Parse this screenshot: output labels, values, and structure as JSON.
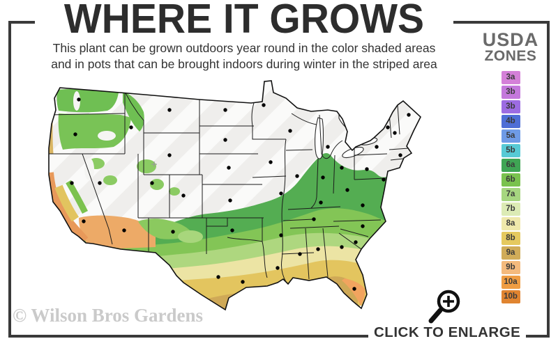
{
  "header": {
    "title": "WHERE IT GROWS",
    "subtitle_line1": "This plant can be grown outdoors year round in the color shaded areas",
    "subtitle_line2": "and in pots that can be brought indoors during winter in the striped area"
  },
  "legend": {
    "title_line1": "USDA",
    "title_line2": "ZONES",
    "zones": [
      {
        "label": "3a",
        "color": "#d480d8"
      },
      {
        "label": "3b",
        "color": "#c478dc"
      },
      {
        "label": "3b",
        "color": "#9c6ce2"
      },
      {
        "label": "4b",
        "color": "#4e6ed6"
      },
      {
        "label": "5a",
        "color": "#6f9be6"
      },
      {
        "label": "5b",
        "color": "#57cad5"
      },
      {
        "label": "6a",
        "color": "#3fa554"
      },
      {
        "label": "6b",
        "color": "#7ac24e"
      },
      {
        "label": "7a",
        "color": "#a6d680"
      },
      {
        "label": "7b",
        "color": "#dcebb5"
      },
      {
        "label": "8a",
        "color": "#efe8ab"
      },
      {
        "label": "8b",
        "color": "#e5c95f"
      },
      {
        "label": "9a",
        "color": "#d0ac59"
      },
      {
        "label": "9b",
        "color": "#f4ba7d"
      },
      {
        "label": "10a",
        "color": "#ef9d43"
      },
      {
        "label": "10b",
        "color": "#e08430"
      }
    ]
  },
  "map": {
    "description": "USDA hardiness zone map of the continental United States",
    "striped_fill_color": "#efeeec",
    "band_colors": [
      "#54ad52",
      "#83c556",
      "#aed77f",
      "#dce8ad",
      "#ece4a4",
      "#e3c55f",
      "#cfa957",
      "#efa258"
    ]
  },
  "footer": {
    "watermark": "© Wilson Bros Gardens",
    "enlarge_label": "CLICK TO ENLARGE"
  },
  "icons": {
    "enlarge": "magnifier-plus-icon"
  }
}
